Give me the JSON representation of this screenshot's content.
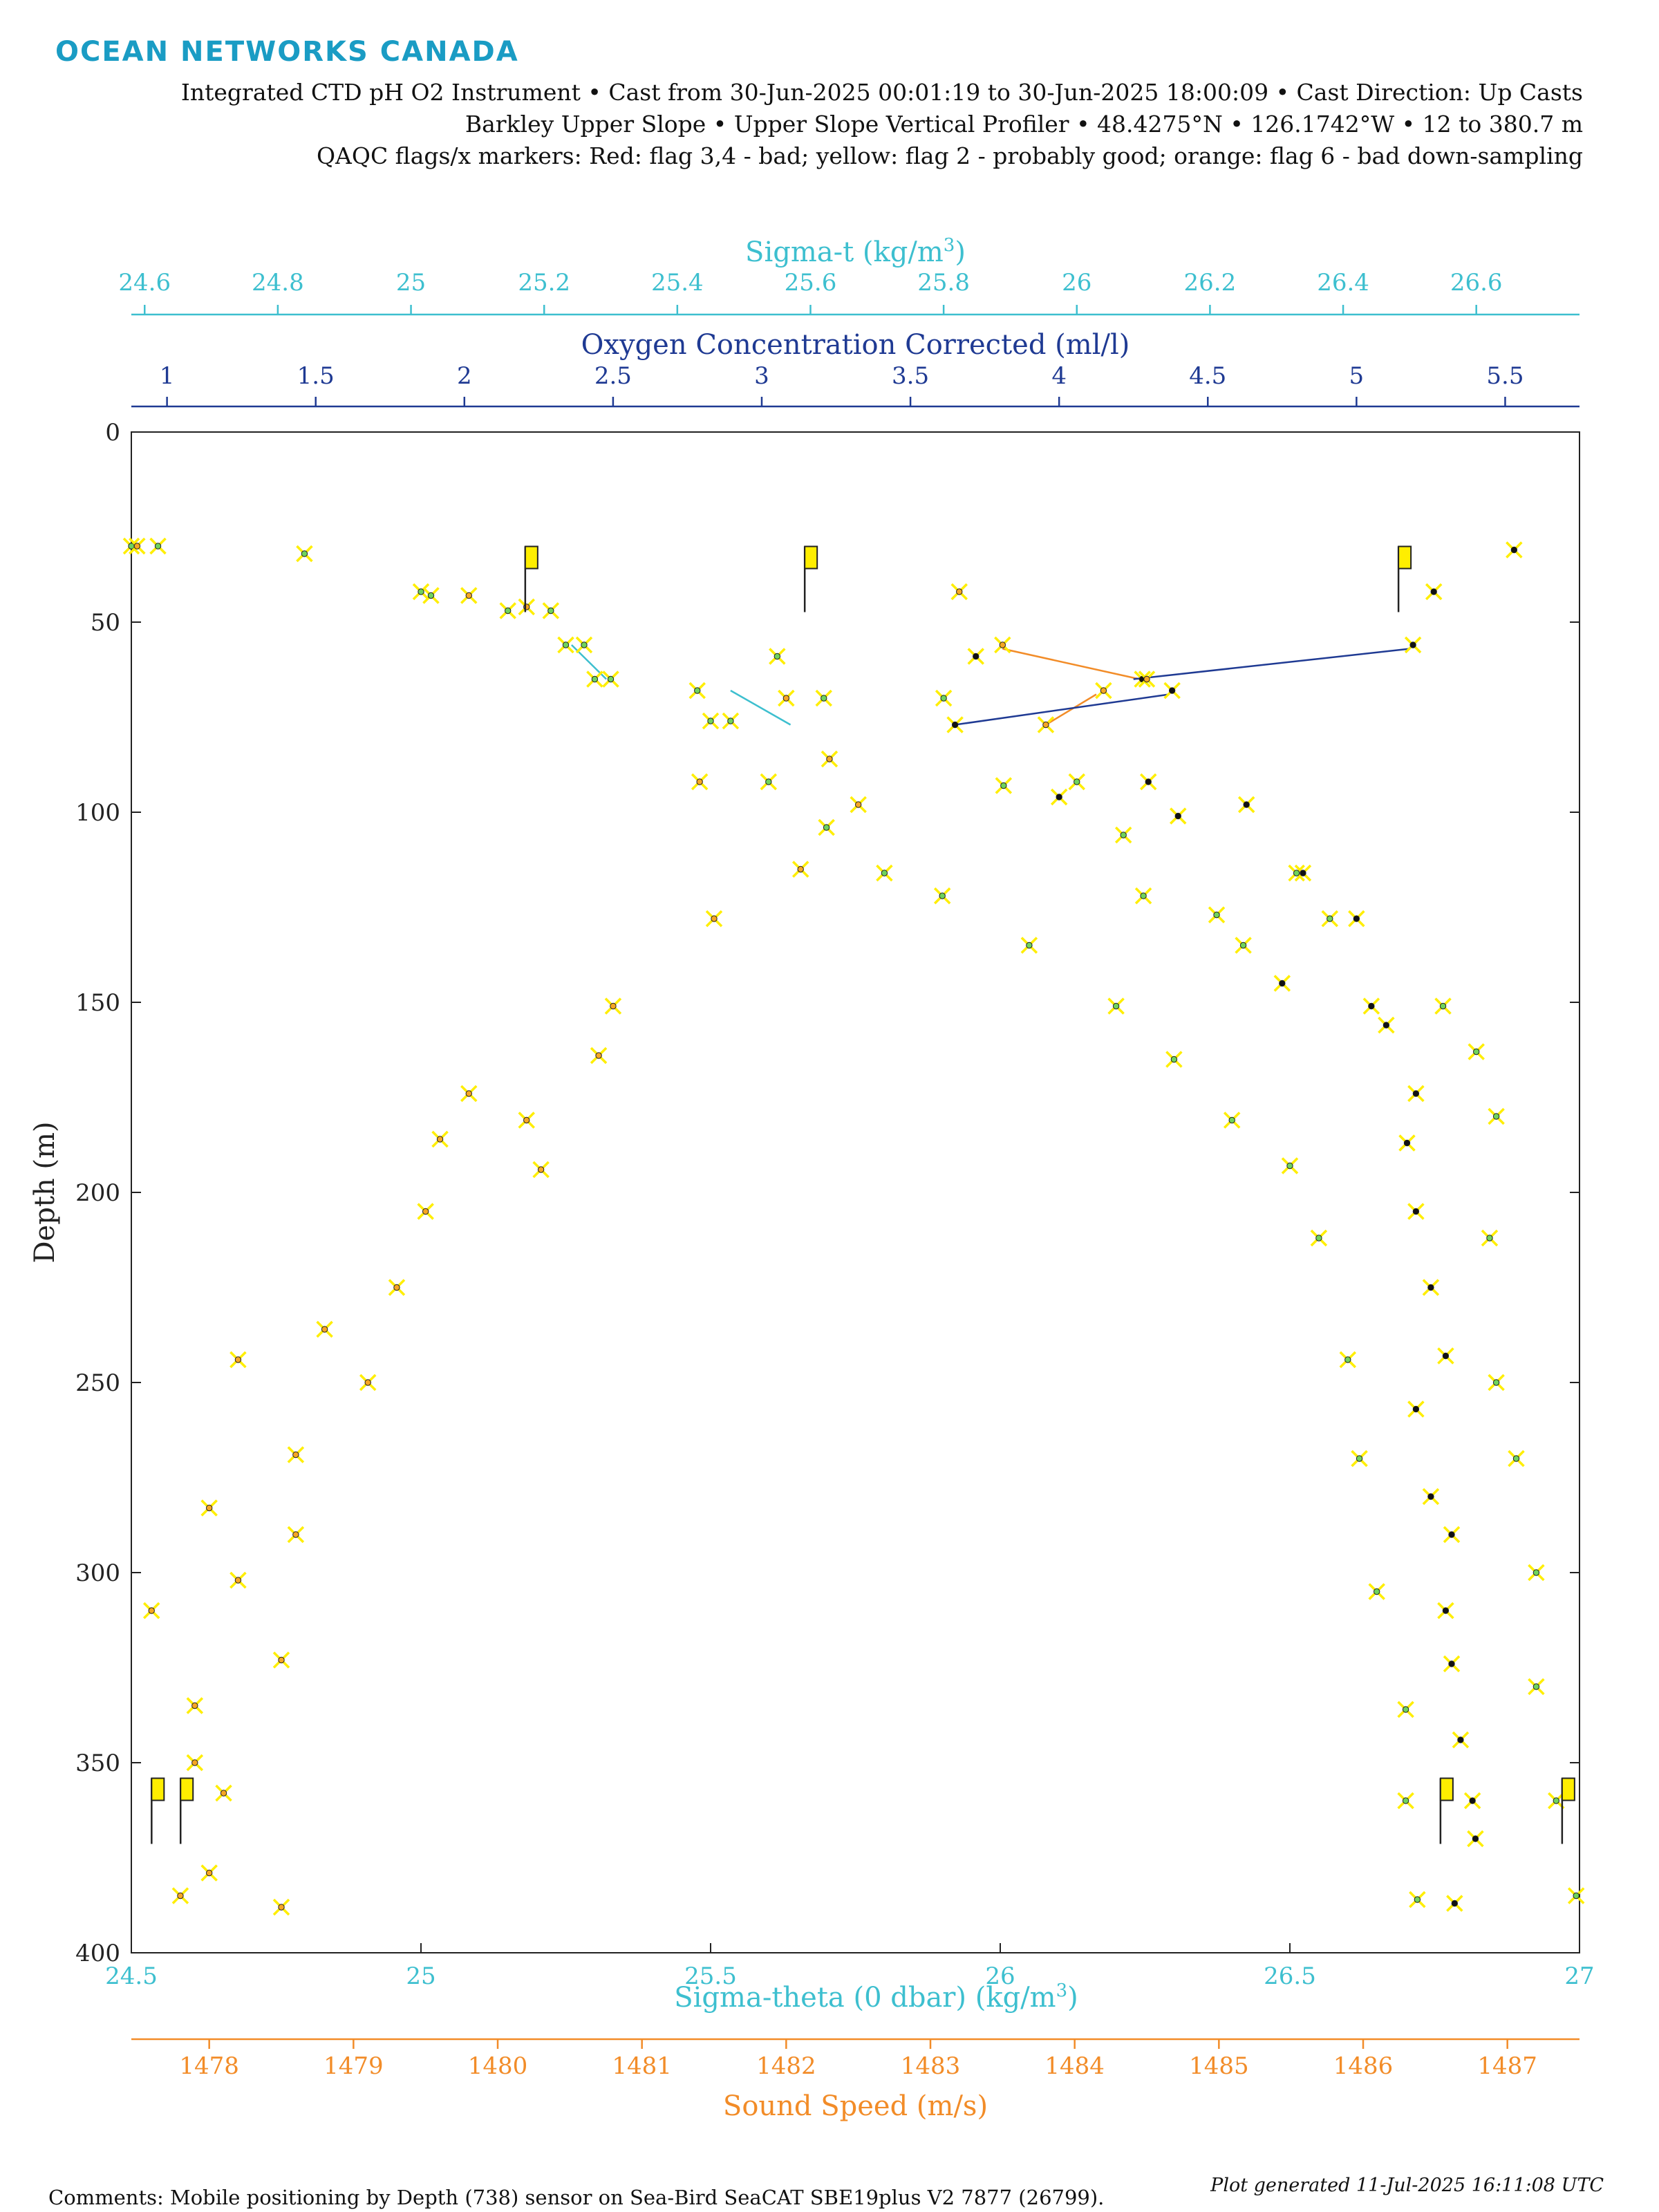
{
  "header": {
    "brand": "OCEAN NETWORKS CANADA",
    "line1": "Integrated CTD pH O2 Instrument • Cast from 30-Jun-2025 00:01:19 to 30-Jun-2025 18:00:09 • Cast Direction: Up Casts",
    "line2": "Barkley Upper Slope • Upper Slope Vertical Profiler • 48.4275°N • 126.1742°W • 12 to 380.7 m",
    "line3": "QAQC flags/x markers: Red: flag 3,4 - bad; yellow: flag 2 - probably good; orange: flag 6 - bad down-sampling"
  },
  "footer": {
    "comments": "Comments: Mobile positioning by Depth (738) sensor on Sea-Bird SeaCAT SBE19plus V2 7877 (26799).",
    "generated": "Plot generated 11-Jul-2025 16:11:08 UTC"
  },
  "colors": {
    "sigma_t": "#3dbfcf",
    "oxygen": "#1f3a93",
    "sigma_theta": "#3dbfcf",
    "sound": "#f28c28",
    "flag": "#ffee00",
    "brand": "#1a9cc4",
    "green_dot": "#6fd35c"
  },
  "chart_data": {
    "type": "scatter",
    "ylabel": "Depth (m)",
    "ylim": [
      0,
      400
    ],
    "y_ticks": [
      "0",
      "50",
      "100",
      "150",
      "200",
      "250",
      "300",
      "350",
      "400"
    ],
    "y_tick_values": [
      0,
      50,
      100,
      150,
      200,
      250,
      300,
      350,
      400
    ],
    "axes": {
      "sigma_t": {
        "label": "Sigma-t (kg/m",
        "label_sup": "3",
        "label_end": ")",
        "range": [
          24.58,
          26.755
        ],
        "ticks": [
          "24.6",
          "24.8",
          "25",
          "25.2",
          "25.4",
          "25.6",
          "25.8",
          "26",
          "26.2",
          "26.4",
          "26.6"
        ],
        "tick_values": [
          24.6,
          24.8,
          25,
          25.2,
          25.4,
          25.6,
          25.8,
          26,
          26.2,
          26.4,
          26.6
        ]
      },
      "oxygen": {
        "label": "Oxygen Concentration Corrected (ml/l)",
        "range": [
          0.88,
          5.75
        ],
        "ticks": [
          "1",
          "1.5",
          "2",
          "2.5",
          "3",
          "3.5",
          "4",
          "4.5",
          "5",
          "5.5"
        ],
        "tick_values": [
          1,
          1.5,
          2,
          2.5,
          3,
          3.5,
          4,
          4.5,
          5,
          5.5
        ]
      },
      "sigma_theta": {
        "label": "Sigma-theta (0 dbar) (kg/m",
        "label_sup": "3",
        "label_end": ")",
        "range": [
          24.5,
          27
        ],
        "ticks": [
          "24.5",
          "25",
          "25.5",
          "26",
          "26.5",
          "27"
        ],
        "tick_values": [
          24.5,
          25,
          25.5,
          26,
          26.5,
          27
        ]
      },
      "sound": {
        "label": "Sound Speed (m/s)",
        "range": [
          1477.46,
          1487.5
        ],
        "ticks": [
          "1478",
          "1479",
          "1480",
          "1481",
          "1482",
          "1483",
          "1484",
          "1485",
          "1486",
          "1487"
        ],
        "tick_values": [
          1478,
          1479,
          1480,
          1481,
          1482,
          1483,
          1484,
          1485,
          1486,
          1487
        ]
      }
    },
    "series": [
      {
        "axis": "sigma_theta",
        "dot": "#6fd35c",
        "flag_depth": 355,
        "points": [
          [
            24.5,
            30
          ],
          [
            25.0,
            42
          ],
          [
            25.15,
            47
          ],
          [
            25.25,
            56
          ],
          [
            25.3,
            65
          ],
          [
            25.5,
            76
          ],
          [
            25.6,
            92
          ],
          [
            25.7,
            104
          ],
          [
            25.8,
            116
          ],
          [
            25.9,
            122
          ],
          [
            26.05,
            135
          ],
          [
            26.2,
            151
          ],
          [
            26.3,
            165
          ],
          [
            26.4,
            181
          ],
          [
            26.5,
            193
          ],
          [
            26.55,
            212
          ],
          [
            26.6,
            244
          ],
          [
            26.62,
            270
          ],
          [
            26.65,
            305
          ],
          [
            26.7,
            336
          ],
          [
            26.7,
            360
          ],
          [
            26.72,
            386
          ]
        ]
      },
      {
        "axis": "sigma_t",
        "dot": "#6fd35c",
        "flag_depth": 355,
        "points": [
          [
            24.62,
            30
          ],
          [
            24.84,
            32
          ],
          [
            25.03,
            43
          ],
          [
            25.21,
            47
          ],
          [
            25.26,
            56
          ],
          [
            25.3,
            65
          ],
          [
            25.43,
            68
          ],
          [
            25.48,
            76
          ],
          [
            25.55,
            59
          ],
          [
            25.62,
            70
          ],
          [
            25.8,
            70
          ],
          [
            25.89,
            93
          ],
          [
            26.0,
            92
          ],
          [
            26.07,
            106
          ],
          [
            26.1,
            122
          ],
          [
            26.21,
            127
          ],
          [
            26.25,
            135
          ],
          [
            26.33,
            116
          ],
          [
            26.38,
            128
          ],
          [
            26.55,
            151
          ],
          [
            26.6,
            163
          ],
          [
            26.63,
            180
          ],
          [
            26.62,
            212
          ],
          [
            26.63,
            250
          ],
          [
            26.66,
            270
          ],
          [
            26.69,
            300
          ],
          [
            26.69,
            330
          ],
          [
            26.72,
            360
          ],
          [
            26.75,
            385
          ]
        ]
      },
      {
        "axis": "oxygen",
        "dot": "#111111",
        "flag_depth": 355,
        "points": [
          [
            5.53,
            31
          ],
          [
            5.26,
            42
          ],
          [
            5.19,
            56
          ],
          [
            4.28,
            65
          ],
          [
            4.38,
            68
          ],
          [
            3.65,
            77
          ],
          [
            3.72,
            59
          ],
          [
            4.0,
            96
          ],
          [
            4.3,
            92
          ],
          [
            4.4,
            101
          ],
          [
            4.63,
            98
          ],
          [
            4.82,
            116
          ],
          [
            5.0,
            128
          ],
          [
            4.75,
            145
          ],
          [
            5.05,
            151
          ],
          [
            5.1,
            156
          ],
          [
            5.2,
            174
          ],
          [
            5.17,
            187
          ],
          [
            5.2,
            205
          ],
          [
            5.25,
            225
          ],
          [
            5.3,
            243
          ],
          [
            5.2,
            257
          ],
          [
            5.25,
            280
          ],
          [
            5.32,
            290
          ],
          [
            5.3,
            310
          ],
          [
            5.32,
            324
          ],
          [
            5.35,
            344
          ],
          [
            5.39,
            360
          ],
          [
            5.4,
            370
          ],
          [
            5.33,
            387
          ]
        ]
      },
      {
        "axis": "sound",
        "dot": "#f5a623",
        "flag_depth": 355,
        "points": [
          [
            1477.5,
            30
          ],
          [
            1479.8,
            43
          ],
          [
            1480.2,
            46
          ],
          [
            1483.2,
            42
          ],
          [
            1483.5,
            56
          ],
          [
            1484.5,
            65
          ],
          [
            1484.2,
            68
          ],
          [
            1483.8,
            77
          ],
          [
            1482.0,
            70
          ],
          [
            1482.3,
            86
          ],
          [
            1482.5,
            98
          ],
          [
            1482.1,
            115
          ],
          [
            1481.4,
            92
          ],
          [
            1481.5,
            128
          ],
          [
            1480.8,
            151
          ],
          [
            1480.7,
            164
          ],
          [
            1480.3,
            194
          ],
          [
            1480.2,
            181
          ],
          [
            1479.8,
            174
          ],
          [
            1479.6,
            186
          ],
          [
            1479.5,
            205
          ],
          [
            1479.3,
            225
          ],
          [
            1479.1,
            250
          ],
          [
            1478.8,
            236
          ],
          [
            1478.6,
            269
          ],
          [
            1478.6,
            290
          ],
          [
            1478.2,
            244
          ],
          [
            1478.0,
            283
          ],
          [
            1478.2,
            302
          ],
          [
            1478.5,
            323
          ],
          [
            1477.9,
            335
          ],
          [
            1477.6,
            310
          ],
          [
            1477.9,
            350
          ],
          [
            1478.1,
            358
          ],
          [
            1478.0,
            379
          ],
          [
            1477.8,
            385
          ],
          [
            1478.5,
            388
          ]
        ]
      }
    ],
    "connector_lines": [
      {
        "axis": "sigma_theta",
        "color": "#3dbfcf",
        "from": [
          25.26,
          56
        ],
        "to": [
          25.32,
          65
        ]
      },
      {
        "axis": "sigma_t",
        "color": "#3dbfcf",
        "from": [
          25.48,
          68
        ],
        "to": [
          25.57,
          77
        ]
      },
      {
        "axis": "sound",
        "color": "#f28c28",
        "from": [
          1483.5,
          57
        ],
        "to": [
          1484.45,
          65
        ]
      },
      {
        "axis": "sound",
        "color": "#f28c28",
        "from": [
          1484.15,
          69
        ],
        "to": [
          1483.8,
          77
        ]
      },
      {
        "axis": "oxygen",
        "color": "#1f3a93",
        "from": [
          5.18,
          57
        ],
        "to": [
          4.25,
          65
        ]
      },
      {
        "axis": "oxygen",
        "color": "#1f3a93",
        "from": [
          4.37,
          69
        ],
        "to": [
          3.65,
          77
        ]
      }
    ],
    "flags": [
      {
        "x_frac": 0.272,
        "depth": 33
      },
      {
        "x_frac": 0.465,
        "depth": 33
      },
      {
        "x_frac": 0.875,
        "depth": 33
      },
      {
        "x_frac": 0.014,
        "depth": 357
      },
      {
        "x_frac": 0.034,
        "depth": 357
      },
      {
        "x_frac": 0.904,
        "depth": 357
      },
      {
        "x_frac": 0.988,
        "depth": 357
      }
    ]
  }
}
